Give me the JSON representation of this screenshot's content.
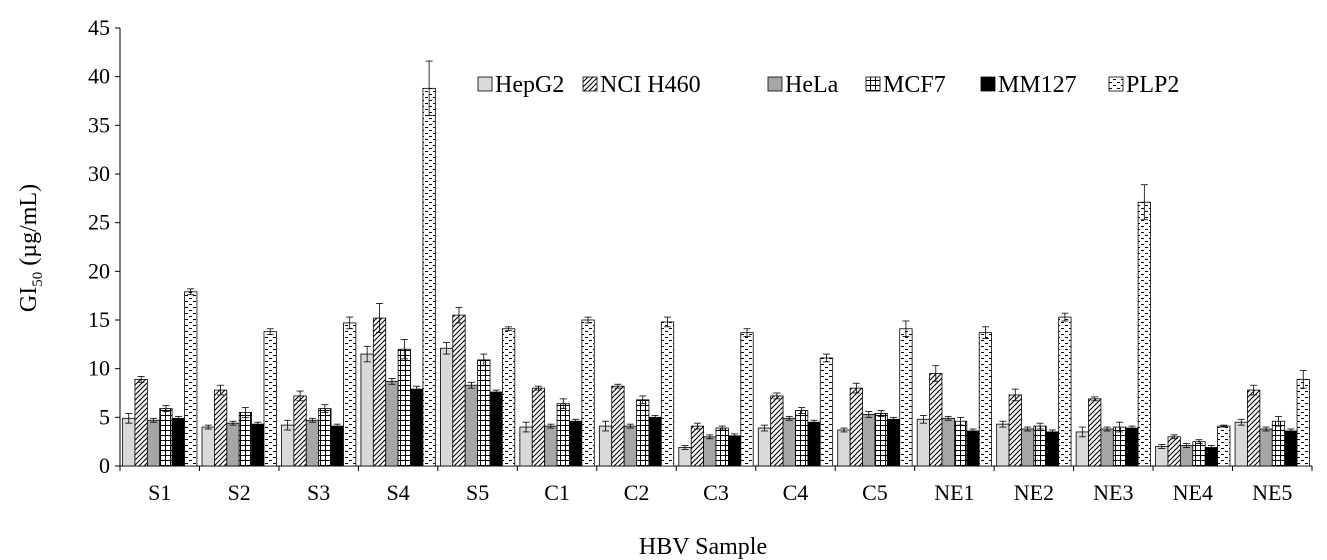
{
  "chart_data": {
    "type": "bar",
    "title": "",
    "xlabel": "HBV Sample",
    "ylabel_main": "GI",
    "ylabel_sub": "50",
    "ylabel_unit": "(µg/mL)",
    "ylim": [
      0,
      45
    ],
    "yticks": [
      0,
      5,
      10,
      15,
      20,
      25,
      30,
      35,
      40,
      45
    ],
    "grid": false,
    "legend_position": "top-right",
    "categories": [
      "S1",
      "S2",
      "S3",
      "S4",
      "S5",
      "C1",
      "C2",
      "C3",
      "C4",
      "C5",
      "NE1",
      "NE2",
      "NE3",
      "NE4",
      "NE5"
    ],
    "series": [
      {
        "name": "HepG2",
        "pattern": "solid-light-gray",
        "values": [
          4.9,
          4.0,
          4.2,
          11.5,
          12.1,
          4.0,
          4.1,
          1.9,
          3.9,
          3.7,
          4.8,
          4.3,
          3.5,
          2.0,
          4.5
        ],
        "errors": [
          0.5,
          0.2,
          0.5,
          0.8,
          0.6,
          0.5,
          0.5,
          0.2,
          0.3,
          0.2,
          0.4,
          0.3,
          0.5,
          0.2,
          0.3
        ]
      },
      {
        "name": "NCI H460",
        "pattern": "diagonal-hatch",
        "values": [
          8.9,
          7.8,
          7.2,
          15.2,
          15.5,
          8.0,
          8.2,
          4.1,
          7.2,
          8.0,
          9.5,
          7.3,
          6.9,
          3.0,
          7.8
        ],
        "errors": [
          0.3,
          0.5,
          0.5,
          1.5,
          0.8,
          0.2,
          0.2,
          0.3,
          0.3,
          0.5,
          0.8,
          0.6,
          0.2,
          0.2,
          0.5
        ]
      },
      {
        "name": "HeLa",
        "pattern": "solid-gray",
        "values": [
          4.7,
          4.4,
          4.7,
          8.7,
          8.3,
          4.1,
          4.1,
          3.0,
          4.9,
          5.3,
          4.9,
          3.8,
          3.8,
          2.1,
          3.8
        ],
        "errors": [
          0.2,
          0.2,
          0.2,
          0.3,
          0.3,
          0.2,
          0.2,
          0.2,
          0.2,
          0.3,
          0.2,
          0.2,
          0.2,
          0.2,
          0.2
        ]
      },
      {
        "name": "MCF7",
        "pattern": "grid",
        "values": [
          5.9,
          5.5,
          5.9,
          12.0,
          10.9,
          6.4,
          6.8,
          3.9,
          5.7,
          5.4,
          4.6,
          4.1,
          4.0,
          2.5,
          4.6
        ],
        "errors": [
          0.3,
          0.5,
          0.4,
          1.0,
          0.6,
          0.5,
          0.4,
          0.2,
          0.3,
          0.3,
          0.4,
          0.3,
          0.5,
          0.2,
          0.5
        ]
      },
      {
        "name": "MM127",
        "pattern": "solid-black",
        "values": [
          4.9,
          4.3,
          4.1,
          7.9,
          7.6,
          4.6,
          5.0,
          3.1,
          4.5,
          4.8,
          3.6,
          3.5,
          3.9,
          1.9,
          3.6
        ],
        "errors": [
          0.2,
          0.2,
          0.2,
          0.3,
          0.2,
          0.2,
          0.2,
          0.2,
          0.2,
          0.2,
          0.2,
          0.2,
          0.2,
          0.2,
          0.2
        ]
      },
      {
        "name": "PLP2",
        "pattern": "dashes",
        "values": [
          17.9,
          13.8,
          14.7,
          38.8,
          14.1,
          15.0,
          14.8,
          13.7,
          11.1,
          14.1,
          13.7,
          15.3,
          27.1,
          4.1,
          8.9
        ],
        "errors": [
          0.3,
          0.3,
          0.6,
          2.8,
          0.2,
          0.3,
          0.5,
          0.4,
          0.4,
          0.8,
          0.6,
          0.4,
          1.8,
          0.1,
          0.9
        ]
      }
    ]
  }
}
